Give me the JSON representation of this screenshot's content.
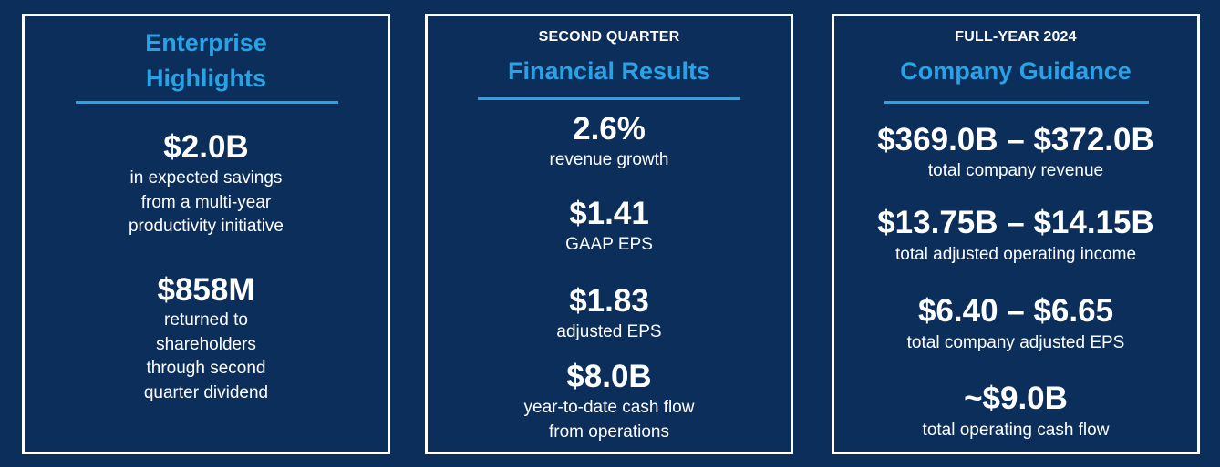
{
  "panels": {
    "enterprise": {
      "title_line1": "Enterprise",
      "title_line2": "Highlights",
      "items": [
        {
          "value": "$2.0B",
          "desc": [
            "in expected savings",
            "from a multi-year",
            "productivity initiative"
          ]
        },
        {
          "value": "$858M",
          "desc": [
            "returned to",
            "shareholders",
            "through second",
            "quarter dividend"
          ]
        }
      ]
    },
    "financial": {
      "eyebrow": "SECOND QUARTER",
      "title": "Financial Results",
      "items": [
        {
          "value": "2.6%",
          "desc": [
            "revenue growth"
          ]
        },
        {
          "value": "$1.41",
          "desc": [
            "GAAP EPS"
          ]
        },
        {
          "value": "$1.83",
          "desc": [
            "adjusted EPS"
          ]
        },
        {
          "value": "$8.0B",
          "desc": [
            "year-to-date cash flow",
            "from operations"
          ]
        }
      ]
    },
    "guidance": {
      "eyebrow": "FULL-YEAR 2024",
      "title": "Company Guidance",
      "items": [
        {
          "value": "$369.0B – $372.0B",
          "desc": [
            "total company revenue"
          ]
        },
        {
          "value": "$13.75B – $14.15B",
          "desc": [
            "total adjusted operating income"
          ]
        },
        {
          "value": "$6.40 – $6.65",
          "desc": [
            "total company adjusted EPS"
          ]
        },
        {
          "value": "~$9.0B",
          "desc": [
            "total operating cash flow"
          ]
        }
      ]
    }
  },
  "colors": {
    "background": "#0b2e5b",
    "accent": "#29a3e6",
    "text": "#ffffff",
    "border": "#ffffff"
  }
}
